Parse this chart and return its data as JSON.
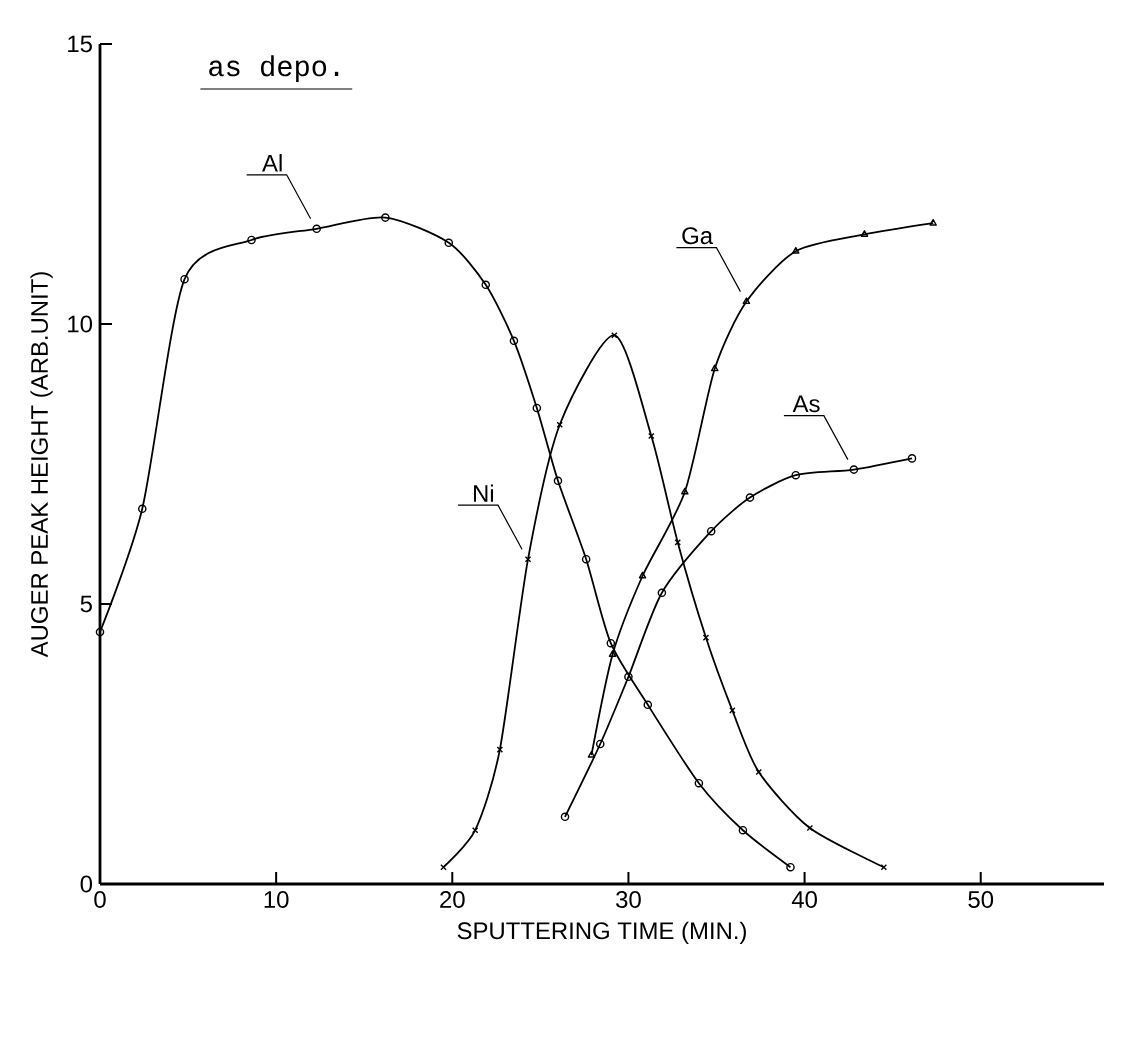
{
  "chart_data": {
    "type": "line",
    "title": "as depo.",
    "xlabel": "SPUTTERING TIME  (MIN.)",
    "ylabel": "AUGER PEAK HEIGHT (ARB.UNIT)",
    "xlim": [
      0,
      57
    ],
    "ylim": [
      0,
      15
    ],
    "xticks": [
      0,
      10,
      20,
      30,
      40,
      50
    ],
    "yticks": [
      0,
      5,
      10,
      15
    ],
    "grid": false,
    "legend": false,
    "series": [
      {
        "name": "Al",
        "color": "#000000",
        "marker": "circle",
        "x": [
          0,
          2.4,
          4.8,
          8.6,
          12.3,
          16.2,
          19.8,
          21.9,
          23.5,
          24.8,
          26.0,
          27.6,
          29.0,
          31.1,
          34.0,
          36.5,
          39.2
        ],
        "values": [
          4.5,
          6.7,
          10.8,
          11.5,
          11.7,
          11.9,
          11.45,
          10.7,
          9.7,
          8.5,
          7.2,
          5.8,
          4.3,
          3.2,
          1.8,
          0.96,
          0.3
        ]
      },
      {
        "name": "Ni",
        "color": "#000000",
        "marker": "cross",
        "x": [
          19.5,
          21.3,
          22.7,
          24.3,
          26.1,
          29.2,
          31.3,
          32.8,
          34.4,
          35.9,
          37.4,
          40.3,
          44.5
        ],
        "values": [
          0.3,
          0.96,
          2.4,
          5.8,
          8.2,
          9.8,
          8.0,
          6.1,
          4.4,
          3.1,
          2.0,
          1.0,
          0.3
        ]
      },
      {
        "name": "Ga",
        "color": "#000000",
        "marker": "triangle",
        "x": [
          27.9,
          29.1,
          30.8,
          33.2,
          34.9,
          36.7,
          39.5,
          43.4,
          47.3
        ],
        "values": [
          2.3,
          4.1,
          5.5,
          7.0,
          9.2,
          10.4,
          11.3,
          11.6,
          11.8
        ]
      },
      {
        "name": "As",
        "color": "#000000",
        "marker": "circle",
        "x": [
          26.4,
          28.4,
          30.0,
          31.9,
          34.7,
          36.9,
          39.5,
          42.8,
          46.1
        ],
        "values": [
          1.2,
          2.5,
          3.7,
          5.2,
          6.3,
          6.9,
          7.3,
          7.4,
          7.6
        ]
      }
    ]
  }
}
